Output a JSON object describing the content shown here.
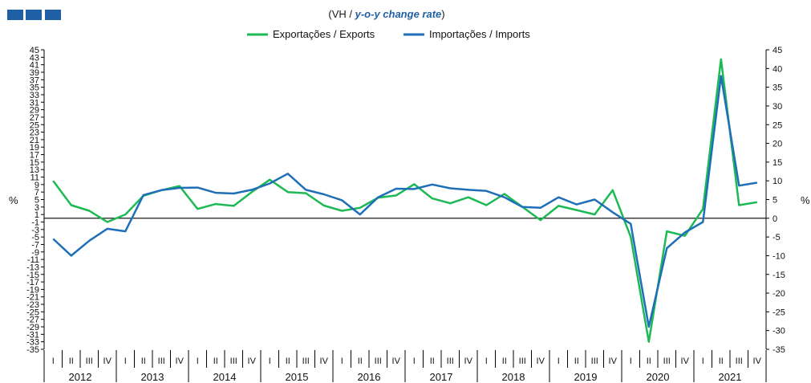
{
  "header": {
    "title_prefix": "(VH / ",
    "title_italic": "y-o-y change rate",
    "title_suffix": ")"
  },
  "chart_data": {
    "type": "line",
    "title": "(VH / y-o-y change rate)",
    "ylabel_left": "%",
    "ylabel_right": "%",
    "ylim": [
      -35,
      45
    ],
    "left_ticks": [
      45,
      43,
      41,
      39,
      37,
      35,
      33,
      31,
      29,
      27,
      25,
      23,
      21,
      19,
      17,
      15,
      13,
      11,
      9,
      7,
      5,
      3,
      1,
      -1,
      -3,
      -5,
      -7,
      -9,
      -11,
      -13,
      -15,
      -17,
      -19,
      -21,
      -23,
      -25,
      -27,
      -29,
      -31,
      -33,
      -35
    ],
    "right_ticks": [
      45,
      40,
      35,
      30,
      25,
      20,
      15,
      10,
      5,
      0,
      -5,
      -10,
      -15,
      -20,
      -25,
      -30,
      -35
    ],
    "quarter_labels": [
      "I",
      "II",
      "III",
      "IV"
    ],
    "years": [
      "2012",
      "2013",
      "2014",
      "2015",
      "2016",
      "2017",
      "2018",
      "2019",
      "2020",
      "2021"
    ],
    "series": [
      {
        "name": "Exportações / Exports",
        "color": "#1db954",
        "values": [
          10.0,
          3.5,
          2.0,
          -1.0,
          1.0,
          6.0,
          7.5,
          8.6,
          2.5,
          3.8,
          3.3,
          7.0,
          10.3,
          7.0,
          6.7,
          3.4,
          2.0,
          2.8,
          5.5,
          6.1,
          9.1,
          5.3,
          4.0,
          5.6,
          3.5,
          6.5,
          3.0,
          -0.5,
          3.3,
          2.2,
          1.0,
          7.5,
          -5.0,
          -33.0,
          -3.5,
          -4.7,
          2.5,
          42.5,
          3.5,
          4.3
        ]
      },
      {
        "name": "Importações / Imports",
        "color": "#1f6fb8",
        "values": [
          -5.5,
          -10.0,
          -6.0,
          -2.8,
          -3.5,
          6.2,
          7.5,
          8.1,
          8.2,
          6.8,
          6.6,
          7.6,
          9.3,
          11.9,
          7.6,
          6.4,
          4.8,
          1.0,
          5.6,
          7.9,
          7.8,
          9.0,
          8.0,
          7.6,
          7.3,
          5.6,
          3.0,
          2.8,
          5.6,
          3.7,
          5.0,
          1.6,
          -1.5,
          -29.0,
          -8.0,
          -3.8,
          -1.0,
          38.0,
          8.7,
          9.5
        ]
      }
    ]
  },
  "colors": {
    "axis": "#000000",
    "logo": "#1f5fa6",
    "title_accent": "#1f5fa6"
  }
}
